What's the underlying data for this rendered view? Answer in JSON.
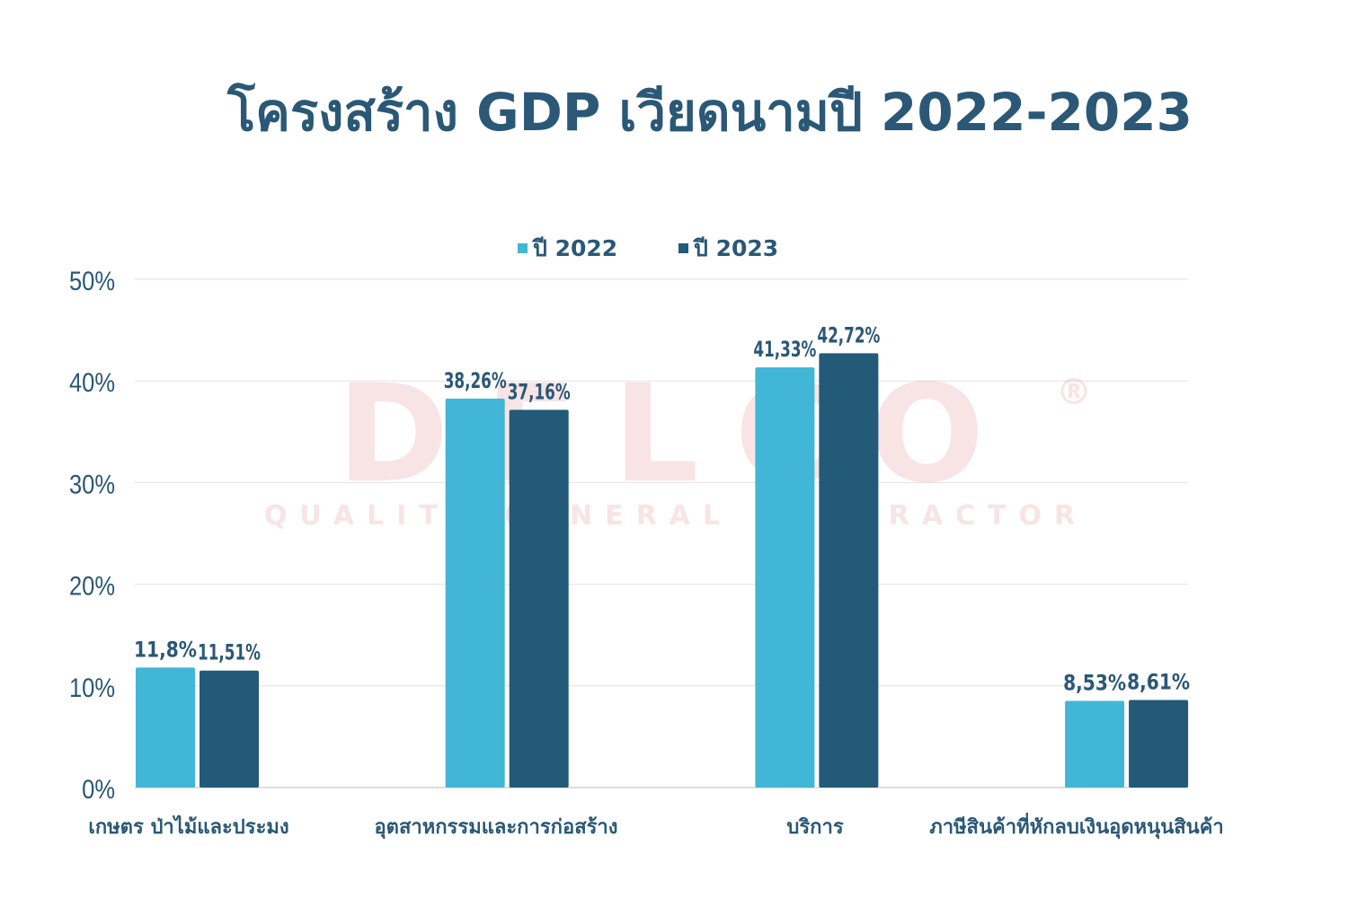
{
  "chart_data": {
    "type": "bar",
    "title": "โครงสร้าง GDP เวียดนามปี 2022-2023",
    "categories": [
      "เกษตร ป่าไม้และประมง",
      "อุตสาหกรรมและการก่อสร้าง",
      "บริการ",
      "ภาษีสินค้าที่หักลบเงินอุดหนุนสินค้า"
    ],
    "series": [
      {
        "name": "ปี 2022",
        "color": "#41b6d6",
        "values": [
          11.8,
          38.26,
          41.33,
          8.53
        ],
        "labels": [
          "11,8%",
          "38,26%",
          "41,33%",
          "8,53%"
        ]
      },
      {
        "name": "ปี 2023",
        "color": "#225a78",
        "values": [
          11.51,
          37.16,
          42.72,
          8.61
        ],
        "labels": [
          "11,51%",
          "37,16%",
          "42,72%",
          "8,61%"
        ]
      }
    ],
    "ylim": [
      0,
      50
    ],
    "yticks": [
      0,
      10,
      20,
      30,
      40,
      50
    ],
    "ytick_labels": [
      "0%",
      "10%",
      "20%",
      "30%",
      "40%",
      "50%"
    ],
    "xlabel": "",
    "ylabel": "",
    "grid": true,
    "legend_position": "top-center"
  },
  "watermark": {
    "brand": "DELCO",
    "tagline": "QUALITY GENERAL CONTRACTOR",
    "mark": "®"
  }
}
